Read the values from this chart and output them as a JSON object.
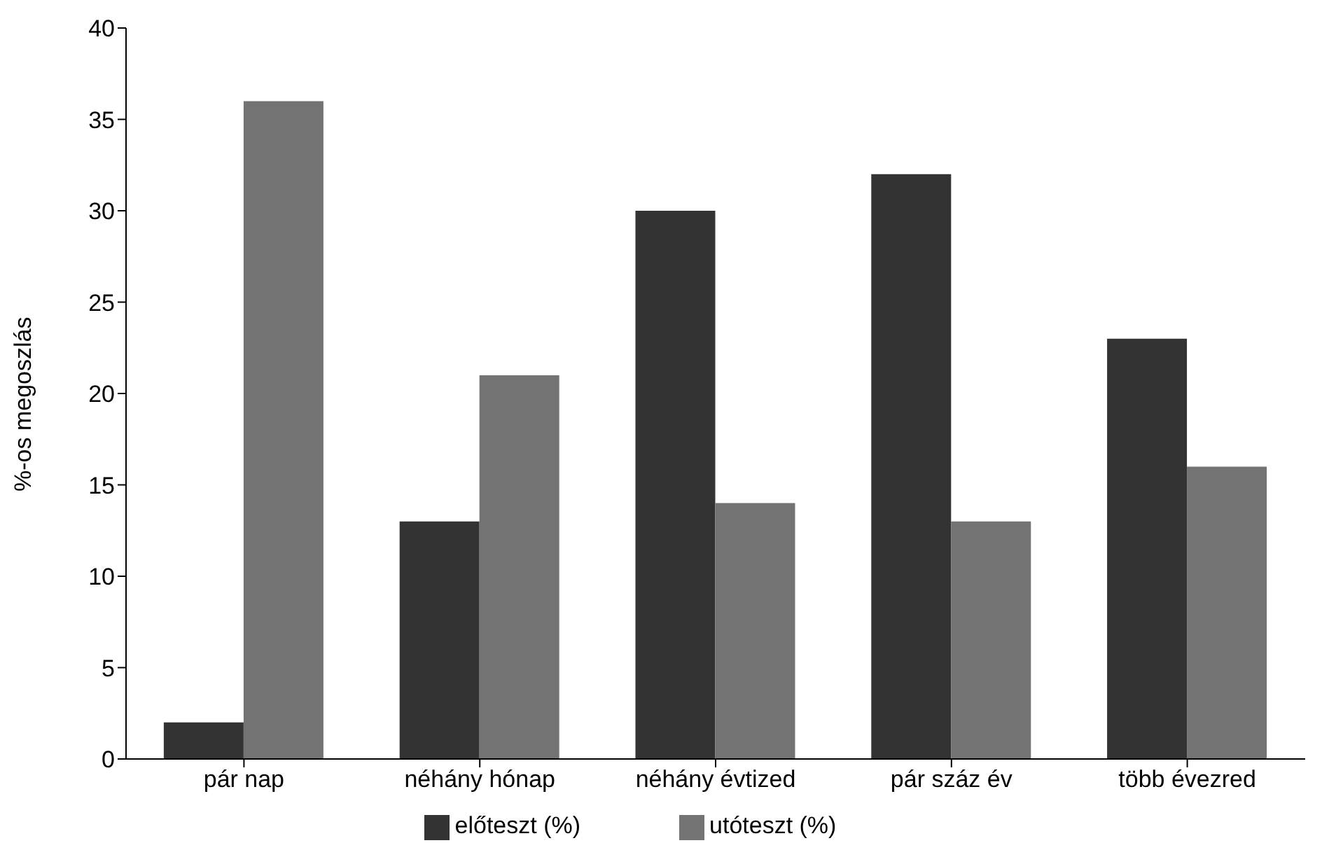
{
  "chart_data": {
    "type": "bar",
    "ylabel": "%-os megoszlás",
    "categories": [
      "pár nap",
      "néhány hónap",
      "néhány évtized",
      "pár száz év",
      "több évezred"
    ],
    "series": [
      {
        "name": "előteszt (%)",
        "color": "#333333",
        "values": [
          2,
          13,
          30,
          32,
          23
        ]
      },
      {
        "name": "utóteszt (%)",
        "color": "#737373",
        "values": [
          36,
          21,
          14,
          13,
          16
        ]
      }
    ],
    "ylim": [
      0,
      40
    ],
    "yticks": [
      0,
      5,
      10,
      15,
      20,
      25,
      30,
      35,
      40
    ],
    "grid": false,
    "legend": "bottom"
  }
}
